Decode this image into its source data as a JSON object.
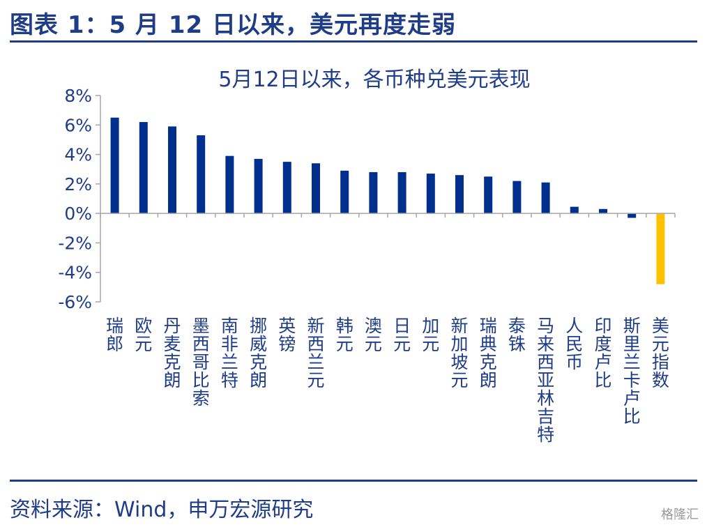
{
  "figure": {
    "title": "图表 1：5 月 12 日以来，美元再度走弱",
    "source": "资料来源：Wind，申万宏源研究",
    "watermark": "格隆汇"
  },
  "colors": {
    "bar": "#002f8e",
    "highlight": "#ffc000",
    "axis": "#a6a6a6",
    "text": "#1f3c88"
  },
  "chart_data": {
    "type": "bar",
    "title": "5月12日以来，各币种兑美元表现",
    "xlabel": "",
    "ylabel": "",
    "ylim": [
      -0.06,
      0.08
    ],
    "yticks": [
      0.08,
      0.06,
      0.04,
      0.02,
      0.0,
      -0.02,
      -0.04,
      -0.06
    ],
    "ytick_labels": [
      "8%",
      "6%",
      "4%",
      "2%",
      "0%",
      "-2%",
      "-4%",
      "-6%"
    ],
    "grid": false,
    "legend": "none",
    "categories": [
      "瑞郎",
      "欧元",
      "丹麦克朗",
      "墨西哥比索",
      "南非兰特",
      "挪威克朗",
      "英镑",
      "新西兰元",
      "韩元",
      "澳元",
      "日元",
      "加元",
      "新加坡元",
      "瑞典克朗",
      "泰铢",
      "马来西亚林吉特",
      "人民币",
      "印度卢比",
      "斯里兰卡卢比",
      "美元指数"
    ],
    "values": [
      0.065,
      0.062,
      0.059,
      0.053,
      0.039,
      0.037,
      0.035,
      0.034,
      0.029,
      0.028,
      0.028,
      0.027,
      0.026,
      0.025,
      0.022,
      0.021,
      0.0045,
      0.003,
      -0.003,
      -0.048
    ],
    "highlight_category": "美元指数"
  }
}
